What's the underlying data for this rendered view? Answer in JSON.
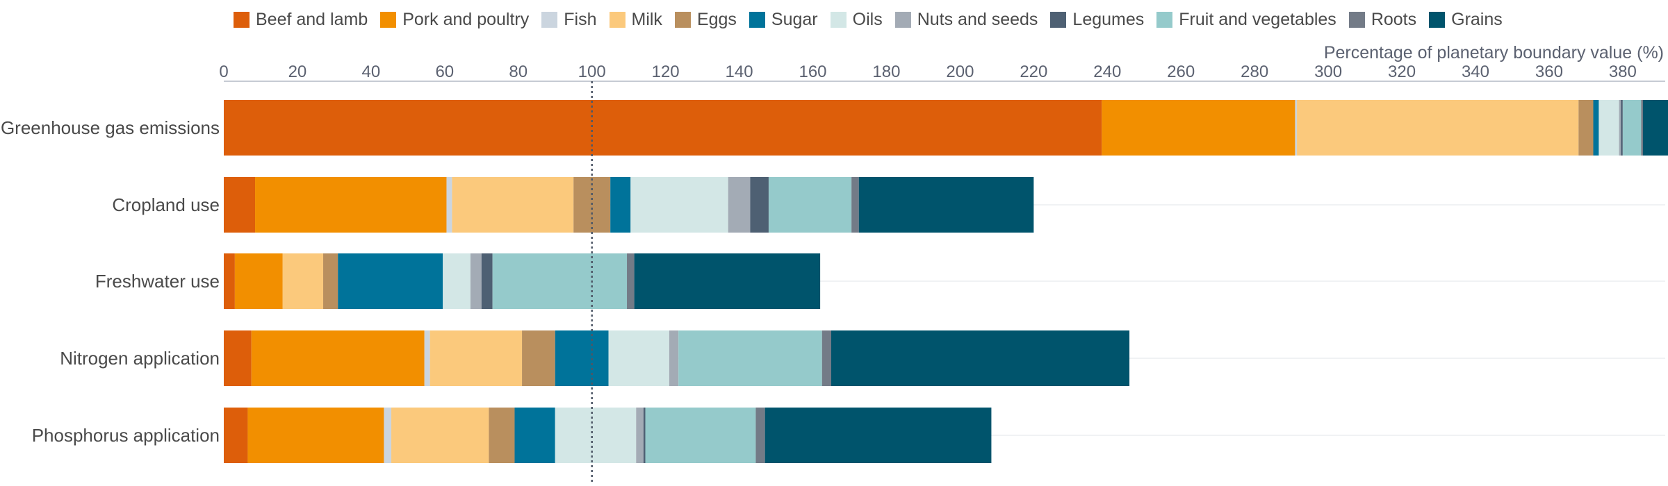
{
  "chart_data": {
    "type": "bar",
    "orientation": "horizontal",
    "stacked": true,
    "xlabel": "Percentage of planetary boundary value (%)",
    "xlim": [
      0,
      392
    ],
    "x_ticks": [
      "0",
      "20",
      "40",
      "60",
      "80",
      "100",
      "120",
      "140",
      "160",
      "180",
      "200",
      "220",
      "240",
      "260",
      "280",
      "300",
      "320",
      "340",
      "360",
      "380"
    ],
    "reference_line": {
      "x": 100,
      "style": "dotted"
    },
    "legend_position": "top",
    "grid": "horizontal lines per category",
    "categories": [
      "Greenhouse gas emissions",
      "Cropland use",
      "Freshwater use",
      "Nitrogen application",
      "Phosphorus application"
    ],
    "series": [
      {
        "name": "Beef and lamb",
        "color": "#dd5e0a",
        "values": [
          238.5,
          8.5,
          3,
          7.5,
          6.5
        ]
      },
      {
        "name": "Pork and poultry",
        "color": "#f28f00",
        "values": [
          52.5,
          52,
          13,
          47,
          37
        ]
      },
      {
        "name": "Fish",
        "color": "#cbd5df",
        "values": [
          0.5,
          1.5,
          0,
          1.5,
          2
        ]
      },
      {
        "name": "Milk",
        "color": "#fbc97c",
        "values": [
          76.5,
          33,
          11,
          25,
          26.5
        ]
      },
      {
        "name": "Eggs",
        "color": "#b98f5e",
        "values": [
          4,
          10,
          4,
          9,
          7
        ]
      },
      {
        "name": "Sugar",
        "color": "#00739a",
        "values": [
          1.5,
          5.5,
          28.5,
          14.5,
          11
        ]
      },
      {
        "name": "Oils",
        "color": "#d3e7e6",
        "values": [
          5.5,
          26.5,
          7.5,
          16.5,
          22
        ]
      },
      {
        "name": "Nuts and seeds",
        "color": "#a3abb5",
        "values": [
          0.5,
          6,
          3,
          2.5,
          2
        ]
      },
      {
        "name": "Legumes",
        "color": "#4e6073",
        "values": [
          0.5,
          5,
          3,
          0,
          0.5
        ]
      },
      {
        "name": "Fruit and vegetables",
        "color": "#95cacb",
        "values": [
          5,
          22.5,
          36.5,
          39,
          30
        ]
      },
      {
        "name": "Roots",
        "color": "#737b87",
        "values": [
          0.5,
          2,
          2,
          2.5,
          2.5
        ]
      },
      {
        "name": "Grains",
        "color": "#00546c",
        "values": [
          7.5,
          47.5,
          50.5,
          81,
          61.5
        ]
      }
    ]
  }
}
